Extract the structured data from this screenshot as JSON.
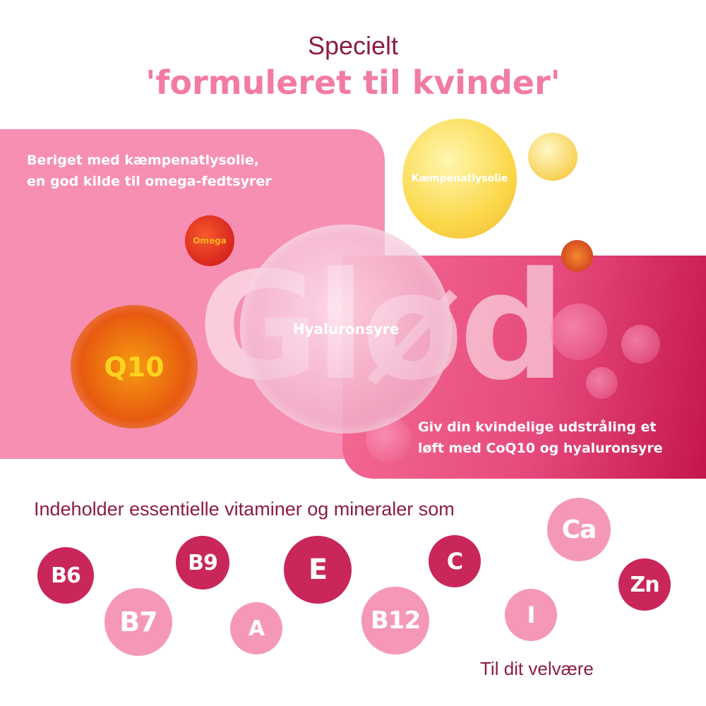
{
  "heading": {
    "line1": "Specielt",
    "line2": "'formuleret til kvinder'"
  },
  "left_panel": {
    "text_line1": "Beriget med kæmpenatlysolie,",
    "text_line2": "en god kilde til omega-fedtsyrer"
  },
  "right_panel": {
    "text_line1": "Giv din kvindelige udstråling et",
    "text_line2": "løft med CoQ10 og hyaluronsyre"
  },
  "big_word": "Glød",
  "bubbles": {
    "evening_primrose": "Kæmpenatlysolie",
    "hyaluronic": "Hyaluronsyre",
    "q10": "Q10",
    "omega": "Omega"
  },
  "vitamins_text": "Indeholder essentielle vitaminer og mineraler som",
  "nutrients": [
    "B6",
    "B9",
    "E",
    "C",
    "Ca",
    "Zn",
    "B7",
    "A",
    "B12",
    "I"
  ],
  "footer": "Til dit velvære",
  "colors": {
    "dark_pink": "#c92659",
    "light_pink": "#f598b8",
    "maroon": "#8c1d40",
    "panel_pink": "#f78fb3"
  }
}
